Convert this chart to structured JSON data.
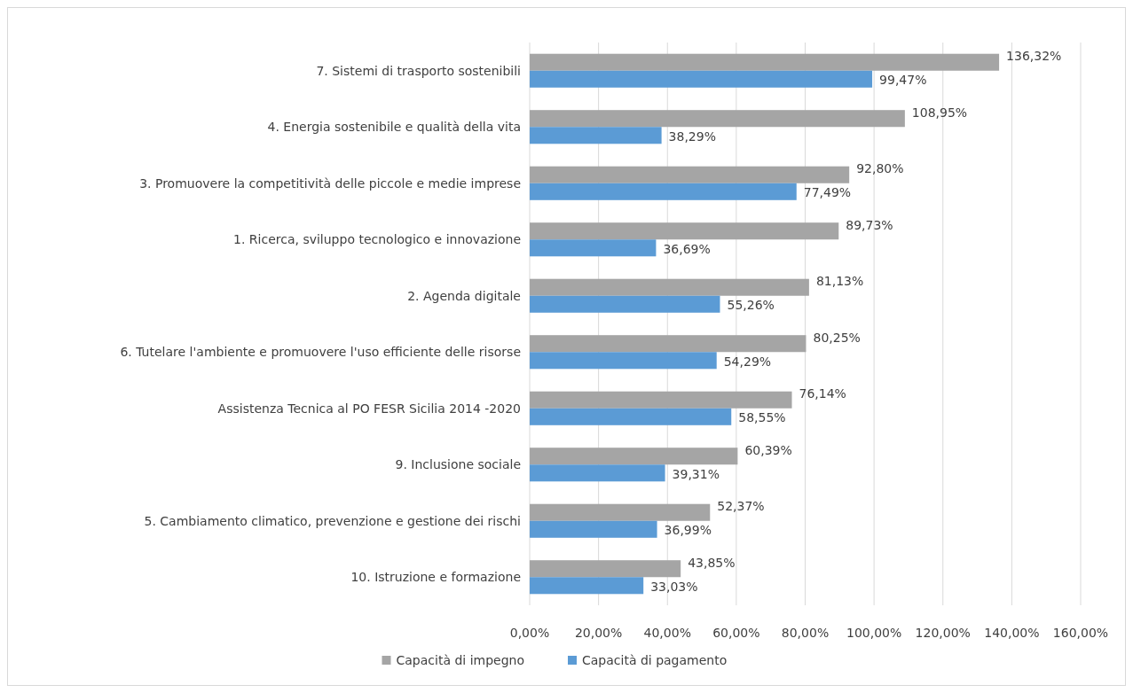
{
  "chart_data": {
    "type": "bar",
    "orientation": "horizontal",
    "categories": [
      "7. Sistemi di trasporto sostenibili",
      "4. Energia sostenibile e qualità della vita",
      "3. Promuovere la competitività delle piccole e medie imprese",
      "1. Ricerca, sviluppo tecnologico e innovazione",
      "2. Agenda digitale",
      "6. Tutelare l'ambiente e promuovere l'uso efficiente delle risorse",
      "Assistenza Tecnica al PO FESR Sicilia 2014 -2020",
      "9. Inclusione sociale",
      "5. Cambiamento climatico, prevenzione e gestione dei rischi",
      "10. Istruzione e formazione"
    ],
    "series": [
      {
        "name": "Capacità di impegno",
        "color": "#a5a5a5",
        "values": [
          136.32,
          108.95,
          92.8,
          89.73,
          81.13,
          80.25,
          76.14,
          60.39,
          52.37,
          43.85
        ],
        "value_labels": [
          "136,32%",
          "108,95%",
          "92,80%",
          "89,73%",
          "81,13%",
          "80,25%",
          "76,14%",
          "60,39%",
          "52,37%",
          "43,85%"
        ]
      },
      {
        "name": "Capacità di pagamento",
        "color": "#5b9bd5",
        "values": [
          99.47,
          38.29,
          77.49,
          36.69,
          55.26,
          54.29,
          58.55,
          39.31,
          36.99,
          33.03
        ],
        "value_labels": [
          "99,47%",
          "38,29%",
          "77,49%",
          "36,69%",
          "55,26%",
          "54,29%",
          "58,55%",
          "39,31%",
          "36,99%",
          "33,03%"
        ]
      }
    ],
    "xlim": [
      0,
      160
    ],
    "xticks": [
      {
        "value": 0,
        "label": "0,00%"
      },
      {
        "value": 20,
        "label": "20,00%"
      },
      {
        "value": 40,
        "label": "40,00%"
      },
      {
        "value": 60,
        "label": "60,00%"
      },
      {
        "value": 80,
        "label": "80,00%"
      },
      {
        "value": 100,
        "label": "100,00%"
      },
      {
        "value": 120,
        "label": "120,00%"
      },
      {
        "value": 140,
        "label": "140,00%"
      },
      {
        "value": 160,
        "label": "160,00%"
      }
    ],
    "grid": "x",
    "legend": "bottom"
  }
}
